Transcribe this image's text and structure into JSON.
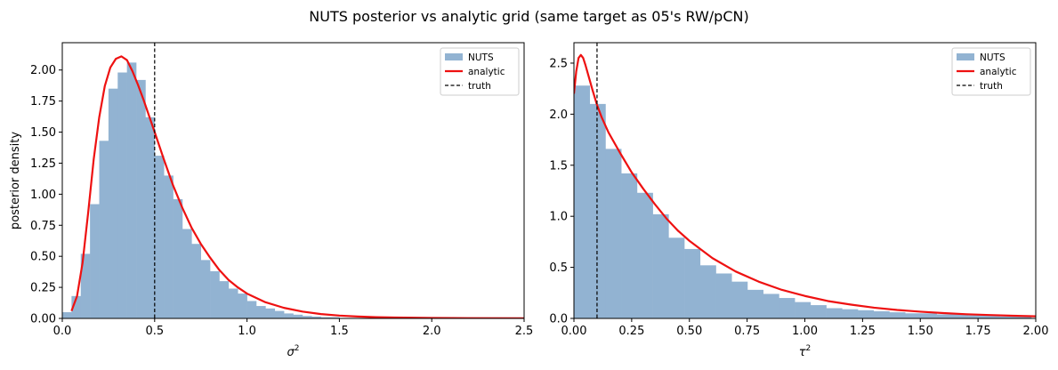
{
  "figure": {
    "title": "NUTS posterior vs analytic grid (same target as 05's RW/pCN)"
  },
  "colors": {
    "hist": "#92b3d2",
    "analytic": "#ee1111",
    "truth": "#000000"
  },
  "chart_data": [
    {
      "type": "bar",
      "xlabel_base": "σ",
      "xlabel_sup": "2",
      "ylabel": "posterior density",
      "xlim": [
        0,
        2.5
      ],
      "ylim": [
        0,
        2.22
      ],
      "xticks": [
        0.0,
        0.5,
        1.0,
        1.5,
        2.0,
        2.5
      ],
      "xtick_labels": [
        "0.0",
        "0.5",
        "1.0",
        "1.5",
        "2.0",
        "2.5"
      ],
      "yticks": [
        0,
        0.25,
        0.5,
        0.75,
        1.0,
        1.25,
        1.5,
        1.75,
        2.0
      ],
      "ytick_labels": [
        "0.00",
        "0.25",
        "0.50",
        "0.75",
        "1.00",
        "1.25",
        "1.50",
        "1.75",
        "2.00"
      ],
      "legend": {
        "placement": "top-right",
        "entries": [
          "NUTS",
          "analytic",
          "truth"
        ]
      },
      "truth": 0.5,
      "histogram": {
        "bin_width": 0.05,
        "bin_starts": [
          0.0,
          0.05,
          0.1,
          0.15,
          0.2,
          0.25,
          0.3,
          0.35,
          0.4,
          0.45,
          0.5,
          0.55,
          0.6,
          0.65,
          0.7,
          0.75,
          0.8,
          0.85,
          0.9,
          0.95,
          1.0,
          1.05,
          1.1,
          1.15,
          1.2,
          1.25,
          1.3,
          1.35,
          1.4,
          1.45
        ],
        "values": [
          0.05,
          0.18,
          0.52,
          0.92,
          1.43,
          1.85,
          1.98,
          2.06,
          1.92,
          1.62,
          1.31,
          1.15,
          0.96,
          0.72,
          0.6,
          0.47,
          0.38,
          0.3,
          0.24,
          0.2,
          0.14,
          0.1,
          0.08,
          0.06,
          0.04,
          0.03,
          0.02,
          0.015,
          0.01,
          0.01
        ]
      },
      "analytic": {
        "x": [
          0.05,
          0.08,
          0.11,
          0.14,
          0.17,
          0.2,
          0.23,
          0.26,
          0.29,
          0.32,
          0.35,
          0.38,
          0.41,
          0.44,
          0.47,
          0.5,
          0.55,
          0.6,
          0.65,
          0.7,
          0.75,
          0.8,
          0.85,
          0.9,
          0.95,
          1.0,
          1.1,
          1.2,
          1.3,
          1.4,
          1.5,
          1.6,
          1.7,
          1.8,
          2.0,
          2.2,
          2.5
        ],
        "y": [
          0.06,
          0.18,
          0.45,
          0.85,
          1.28,
          1.62,
          1.87,
          2.02,
          2.09,
          2.11,
          2.08,
          1.99,
          1.88,
          1.76,
          1.63,
          1.5,
          1.28,
          1.07,
          0.89,
          0.73,
          0.6,
          0.49,
          0.39,
          0.31,
          0.25,
          0.2,
          0.13,
          0.085,
          0.055,
          0.035,
          0.023,
          0.015,
          0.01,
          0.007,
          0.004,
          0.002,
          0.001
        ]
      }
    },
    {
      "type": "bar",
      "xlabel_base": "τ",
      "xlabel_sup": "2",
      "ylabel": "",
      "xlim": [
        0,
        2.0
      ],
      "ylim": [
        0,
        2.7
      ],
      "xticks": [
        0.0,
        0.25,
        0.5,
        0.75,
        1.0,
        1.25,
        1.5,
        1.75,
        2.0
      ],
      "xtick_labels": [
        "0.00",
        "0.25",
        "0.50",
        "0.75",
        "1.00",
        "1.25",
        "1.50",
        "1.75",
        "2.00"
      ],
      "yticks": [
        0,
        0.5,
        1.0,
        1.5,
        2.0,
        2.5
      ],
      "ytick_labels": [
        "0.0",
        "0.5",
        "1.0",
        "1.5",
        "2.0",
        "2.5"
      ],
      "legend": {
        "placement": "top-right",
        "entries": [
          "NUTS",
          "analytic",
          "truth"
        ]
      },
      "truth": 0.1,
      "histogram": {
        "bin_width": 0.0683,
        "bin_starts": [
          0.0,
          0.0683,
          0.1366,
          0.2049,
          0.2732,
          0.3415,
          0.4098,
          0.4781,
          0.5464,
          0.6147,
          0.683,
          0.7513,
          0.8196,
          0.8879,
          0.9562,
          1.0245,
          1.0928,
          1.1611,
          1.2294,
          1.2977,
          1.366,
          1.4343,
          1.5026,
          1.5709,
          1.6392,
          1.7075,
          1.7758,
          1.8441,
          1.9124
        ],
        "values": [
          2.28,
          2.1,
          1.66,
          1.42,
          1.23,
          1.02,
          0.79,
          0.68,
          0.52,
          0.44,
          0.36,
          0.28,
          0.24,
          0.2,
          0.16,
          0.13,
          0.1,
          0.09,
          0.08,
          0.07,
          0.06,
          0.05,
          0.05,
          0.04,
          0.04,
          0.03,
          0.03,
          0.02,
          0.02
        ]
      },
      "analytic": {
        "x": [
          0.0,
          0.01,
          0.02,
          0.03,
          0.04,
          0.05,
          0.06,
          0.08,
          0.1,
          0.12,
          0.15,
          0.2,
          0.25,
          0.3,
          0.35,
          0.4,
          0.45,
          0.5,
          0.6,
          0.7,
          0.8,
          0.9,
          1.0,
          1.1,
          1.2,
          1.3,
          1.4,
          1.5,
          1.6,
          1.7,
          1.8,
          1.9,
          2.0
        ],
        "y": [
          2.2,
          2.42,
          2.55,
          2.58,
          2.55,
          2.48,
          2.4,
          2.24,
          2.09,
          1.97,
          1.82,
          1.62,
          1.43,
          1.27,
          1.12,
          0.98,
          0.86,
          0.76,
          0.59,
          0.46,
          0.36,
          0.28,
          0.22,
          0.17,
          0.135,
          0.105,
          0.083,
          0.066,
          0.052,
          0.041,
          0.033,
          0.026,
          0.021
        ]
      }
    }
  ]
}
